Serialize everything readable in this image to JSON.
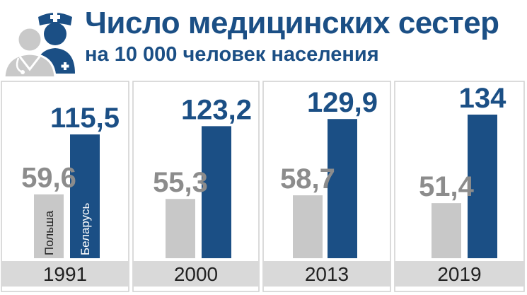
{
  "title": "Число медицинских сестер",
  "subtitle": "на 10 000 человек населения",
  "icon": "nurse-doctor-icon",
  "colors": {
    "title": "#1b4f85",
    "belarus": "#1b4f85",
    "poland": "#c8c8c8",
    "poland_value": "#8c8c8c",
    "panel_border": "#cfcfcf",
    "year_band": "#d9d9d9"
  },
  "chart_data": {
    "type": "bar",
    "categories": [
      "1991",
      "2000",
      "2013",
      "2019"
    ],
    "series": [
      {
        "name": "Польша",
        "values": [
          59.6,
          55.3,
          58.7,
          51.4
        ]
      },
      {
        "name": "Беларусь",
        "values": [
          115.5,
          123.2,
          129.9,
          134
        ]
      }
    ],
    "data_labels": {
      "Польша": [
        "59,6",
        "55,3",
        "58,7",
        "51,4"
      ],
      "Беларусь": [
        "115,5",
        "123,2",
        "129,9",
        "134"
      ]
    },
    "ylim": [
      0,
      134
    ]
  }
}
